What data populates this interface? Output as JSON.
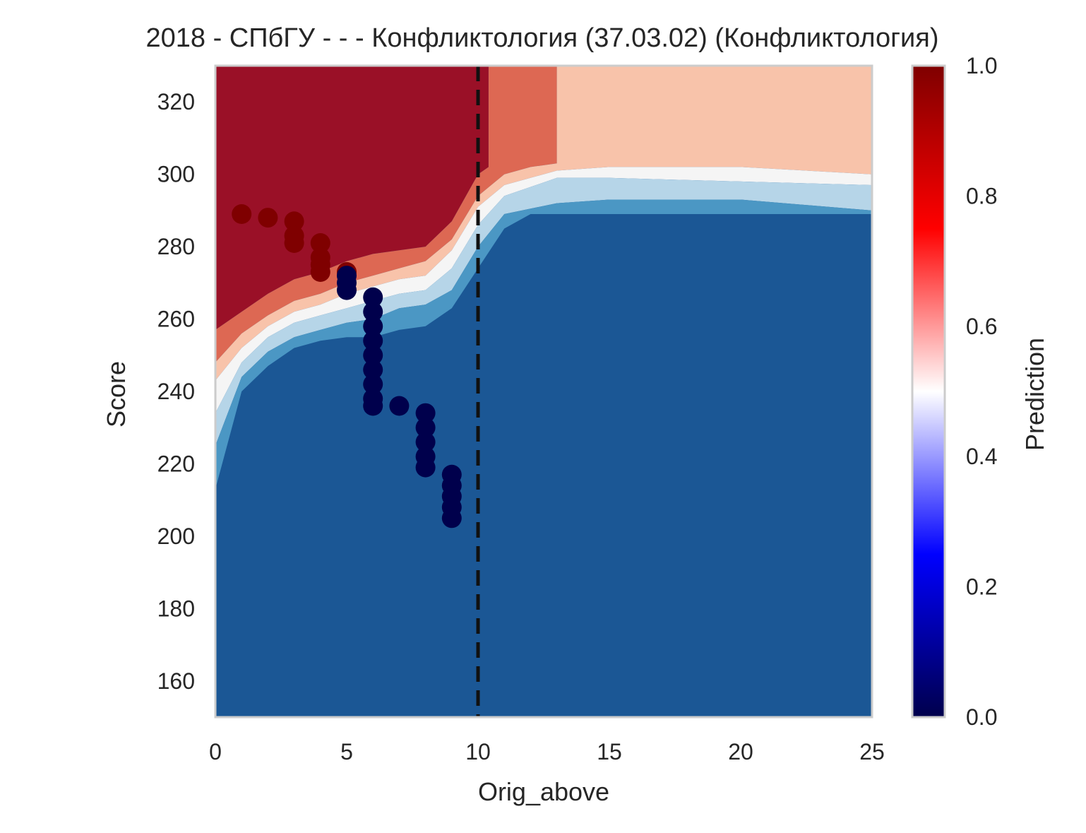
{
  "chart_data": {
    "type": "heatmap",
    "title": "2018 - СПбГУ - - - Конфликтология (37.03.02) (Конфликтология)",
    "xlabel": "Orig_above",
    "ylabel": "Score",
    "xlim": [
      0,
      25
    ],
    "ylim": [
      150,
      330
    ],
    "xticks": [
      0,
      5,
      10,
      15,
      20,
      25
    ],
    "yticks": [
      160,
      180,
      200,
      220,
      240,
      260,
      280,
      300,
      320
    ],
    "grid": false,
    "threshold_line": {
      "x": 10,
      "style": "dashed",
      "color": "#111111"
    },
    "contour_levels": [
      0,
      0.1,
      0.2,
      0.3,
      0.4,
      0.5,
      0.6,
      0.7,
      0.8,
      0.9,
      1.0
    ],
    "contour_colors": {
      "0.0-0.3": "#1b5795",
      "0.3-0.4": "#4b97c4",
      "0.4-0.45": "#b6d5e8",
      "0.45-0.55": "#f5f5f5",
      "0.55-0.65": "#f8c3aa",
      "0.65-0.8": "#dd6853",
      "0.8-1.0": "#9a1027"
    },
    "regions": [
      {
        "level": "0.8-1.0",
        "boundary": [
          [
            0,
            330
          ],
          [
            0,
            257
          ],
          [
            1,
            262
          ],
          [
            2,
            267
          ],
          [
            3,
            271
          ],
          [
            4,
            273
          ],
          [
            5,
            276
          ],
          [
            6,
            278
          ],
          [
            7,
            279
          ],
          [
            8,
            280
          ],
          [
            9,
            287
          ],
          [
            10,
            300
          ],
          [
            10.4,
            302
          ],
          [
            10.4,
            330
          ]
        ]
      },
      {
        "level": "0.65-0.8",
        "boundary": [
          [
            0,
            257
          ],
          [
            0,
            248
          ],
          [
            1,
            256
          ],
          [
            2,
            261
          ],
          [
            3,
            265
          ],
          [
            4,
            267
          ],
          [
            5,
            270
          ],
          [
            6,
            272
          ],
          [
            7,
            274
          ],
          [
            8,
            276
          ],
          [
            9,
            282
          ],
          [
            10,
            294
          ],
          [
            11,
            300
          ],
          [
            12,
            302
          ],
          [
            13,
            303
          ],
          [
            13,
            330
          ],
          [
            10.4,
            330
          ],
          [
            10.4,
            302
          ],
          [
            10,
            300
          ],
          [
            9,
            287
          ],
          [
            8,
            280
          ],
          [
            7,
            279
          ],
          [
            6,
            278
          ],
          [
            5,
            276
          ],
          [
            4,
            273
          ],
          [
            3,
            271
          ],
          [
            2,
            267
          ],
          [
            1,
            262
          ]
        ]
      },
      {
        "level": "0.55-0.65",
        "boundary": [
          [
            0,
            248
          ],
          [
            0,
            243
          ],
          [
            1,
            252
          ],
          [
            2,
            258
          ],
          [
            3,
            262
          ],
          [
            4,
            264
          ],
          [
            5,
            267
          ],
          [
            6,
            269
          ],
          [
            7,
            271
          ],
          [
            8,
            272
          ],
          [
            9,
            279
          ],
          [
            10,
            291
          ],
          [
            11,
            297
          ],
          [
            13,
            301
          ],
          [
            15,
            302
          ],
          [
            20,
            302
          ],
          [
            25,
            300
          ],
          [
            25,
            330
          ],
          [
            13,
            330
          ],
          [
            13,
            303
          ],
          [
            12,
            302
          ],
          [
            11,
            300
          ],
          [
            10,
            294
          ],
          [
            9,
            282
          ],
          [
            8,
            276
          ],
          [
            7,
            274
          ],
          [
            6,
            272
          ],
          [
            5,
            270
          ],
          [
            4,
            267
          ],
          [
            3,
            265
          ],
          [
            2,
            261
          ],
          [
            1,
            256
          ]
        ]
      },
      {
        "level": "0.45-0.55",
        "boundary": [
          [
            0,
            243
          ],
          [
            0,
            234
          ],
          [
            1,
            248
          ],
          [
            2,
            255
          ],
          [
            3,
            259
          ],
          [
            4,
            261
          ],
          [
            5,
            263
          ],
          [
            6,
            265
          ],
          [
            7,
            267
          ],
          [
            8,
            268
          ],
          [
            9,
            274
          ],
          [
            10,
            286
          ],
          [
            11,
            294
          ],
          [
            13,
            299
          ],
          [
            15,
            299
          ],
          [
            20,
            298
          ],
          [
            25,
            297
          ],
          [
            25,
            300
          ],
          [
            20,
            302
          ],
          [
            15,
            302
          ],
          [
            13,
            301
          ],
          [
            11,
            297
          ],
          [
            10,
            291
          ],
          [
            9,
            279
          ],
          [
            8,
            272
          ],
          [
            7,
            271
          ],
          [
            6,
            269
          ],
          [
            5,
            267
          ],
          [
            4,
            264
          ],
          [
            3,
            262
          ],
          [
            2,
            258
          ],
          [
            1,
            252
          ]
        ]
      },
      {
        "level": "0.4-0.45",
        "boundary": [
          [
            0,
            234
          ],
          [
            0,
            225
          ],
          [
            1,
            244
          ],
          [
            2,
            251
          ],
          [
            3,
            255
          ],
          [
            4,
            257
          ],
          [
            5,
            259
          ],
          [
            6,
            260
          ],
          [
            7,
            263
          ],
          [
            8,
            264
          ],
          [
            9,
            268
          ],
          [
            10,
            280
          ],
          [
            11,
            289
          ],
          [
            13,
            292
          ],
          [
            15,
            293
          ],
          [
            20,
            293
          ],
          [
            25,
            290
          ],
          [
            25,
            297
          ],
          [
            20,
            298
          ],
          [
            15,
            299
          ],
          [
            13,
            299
          ],
          [
            11,
            294
          ],
          [
            10,
            286
          ],
          [
            9,
            274
          ],
          [
            8,
            268
          ],
          [
            7,
            267
          ],
          [
            6,
            265
          ],
          [
            5,
            263
          ],
          [
            4,
            261
          ],
          [
            3,
            259
          ],
          [
            2,
            255
          ],
          [
            1,
            248
          ]
        ]
      },
      {
        "level": "0.3-0.4",
        "boundary": [
          [
            0,
            225
          ],
          [
            0,
            213
          ],
          [
            1,
            240
          ],
          [
            2,
            247
          ],
          [
            3,
            252
          ],
          [
            4,
            254
          ],
          [
            5,
            255
          ],
          [
            6,
            255
          ],
          [
            7,
            257
          ],
          [
            8,
            258
          ],
          [
            9,
            263
          ],
          [
            10,
            274
          ],
          [
            11,
            285
          ],
          [
            12,
            289
          ],
          [
            25,
            289
          ],
          [
            25,
            290
          ],
          [
            20,
            293
          ],
          [
            15,
            293
          ],
          [
            13,
            292
          ],
          [
            11,
            289
          ],
          [
            10,
            280
          ],
          [
            9,
            268
          ],
          [
            8,
            264
          ],
          [
            7,
            263
          ],
          [
            6,
            260
          ],
          [
            5,
            259
          ],
          [
            4,
            257
          ],
          [
            3,
            255
          ],
          [
            2,
            251
          ],
          [
            1,
            244
          ]
        ]
      }
    ],
    "series": [
      {
        "name": "",
        "color": "#7f0000",
        "label": 1,
        "points": [
          [
            1,
            289
          ],
          [
            2,
            288
          ],
          [
            3,
            287
          ],
          [
            3,
            283
          ],
          [
            3,
            281
          ],
          [
            4,
            281
          ],
          [
            4,
            277
          ],
          [
            4,
            275
          ],
          [
            4,
            273
          ],
          [
            5,
            273
          ]
        ]
      },
      {
        "name": "",
        "color": "#00004c",
        "label": 0,
        "points": [
          [
            5,
            272
          ],
          [
            5,
            270
          ],
          [
            5,
            268
          ],
          [
            6,
            266
          ],
          [
            6,
            262
          ],
          [
            6,
            258
          ],
          [
            6,
            254
          ],
          [
            6,
            250
          ],
          [
            6,
            246
          ],
          [
            6,
            242
          ],
          [
            6,
            238
          ],
          [
            6,
            236
          ],
          [
            7,
            236
          ],
          [
            8,
            234
          ],
          [
            8,
            230
          ],
          [
            8,
            226
          ],
          [
            8,
            222
          ],
          [
            8,
            219
          ],
          [
            9,
            217
          ],
          [
            9,
            214
          ],
          [
            9,
            211
          ],
          [
            9,
            208
          ],
          [
            9,
            205
          ]
        ]
      }
    ],
    "colorbar": {
      "label": "Prediction",
      "ticks": [
        "0.0",
        "0.2",
        "0.4",
        "0.6",
        "0.8",
        "1.0"
      ],
      "stops": [
        "#00004c",
        "#0000ff",
        "#ffffff",
        "#ff0000",
        "#7f0000"
      ]
    }
  }
}
